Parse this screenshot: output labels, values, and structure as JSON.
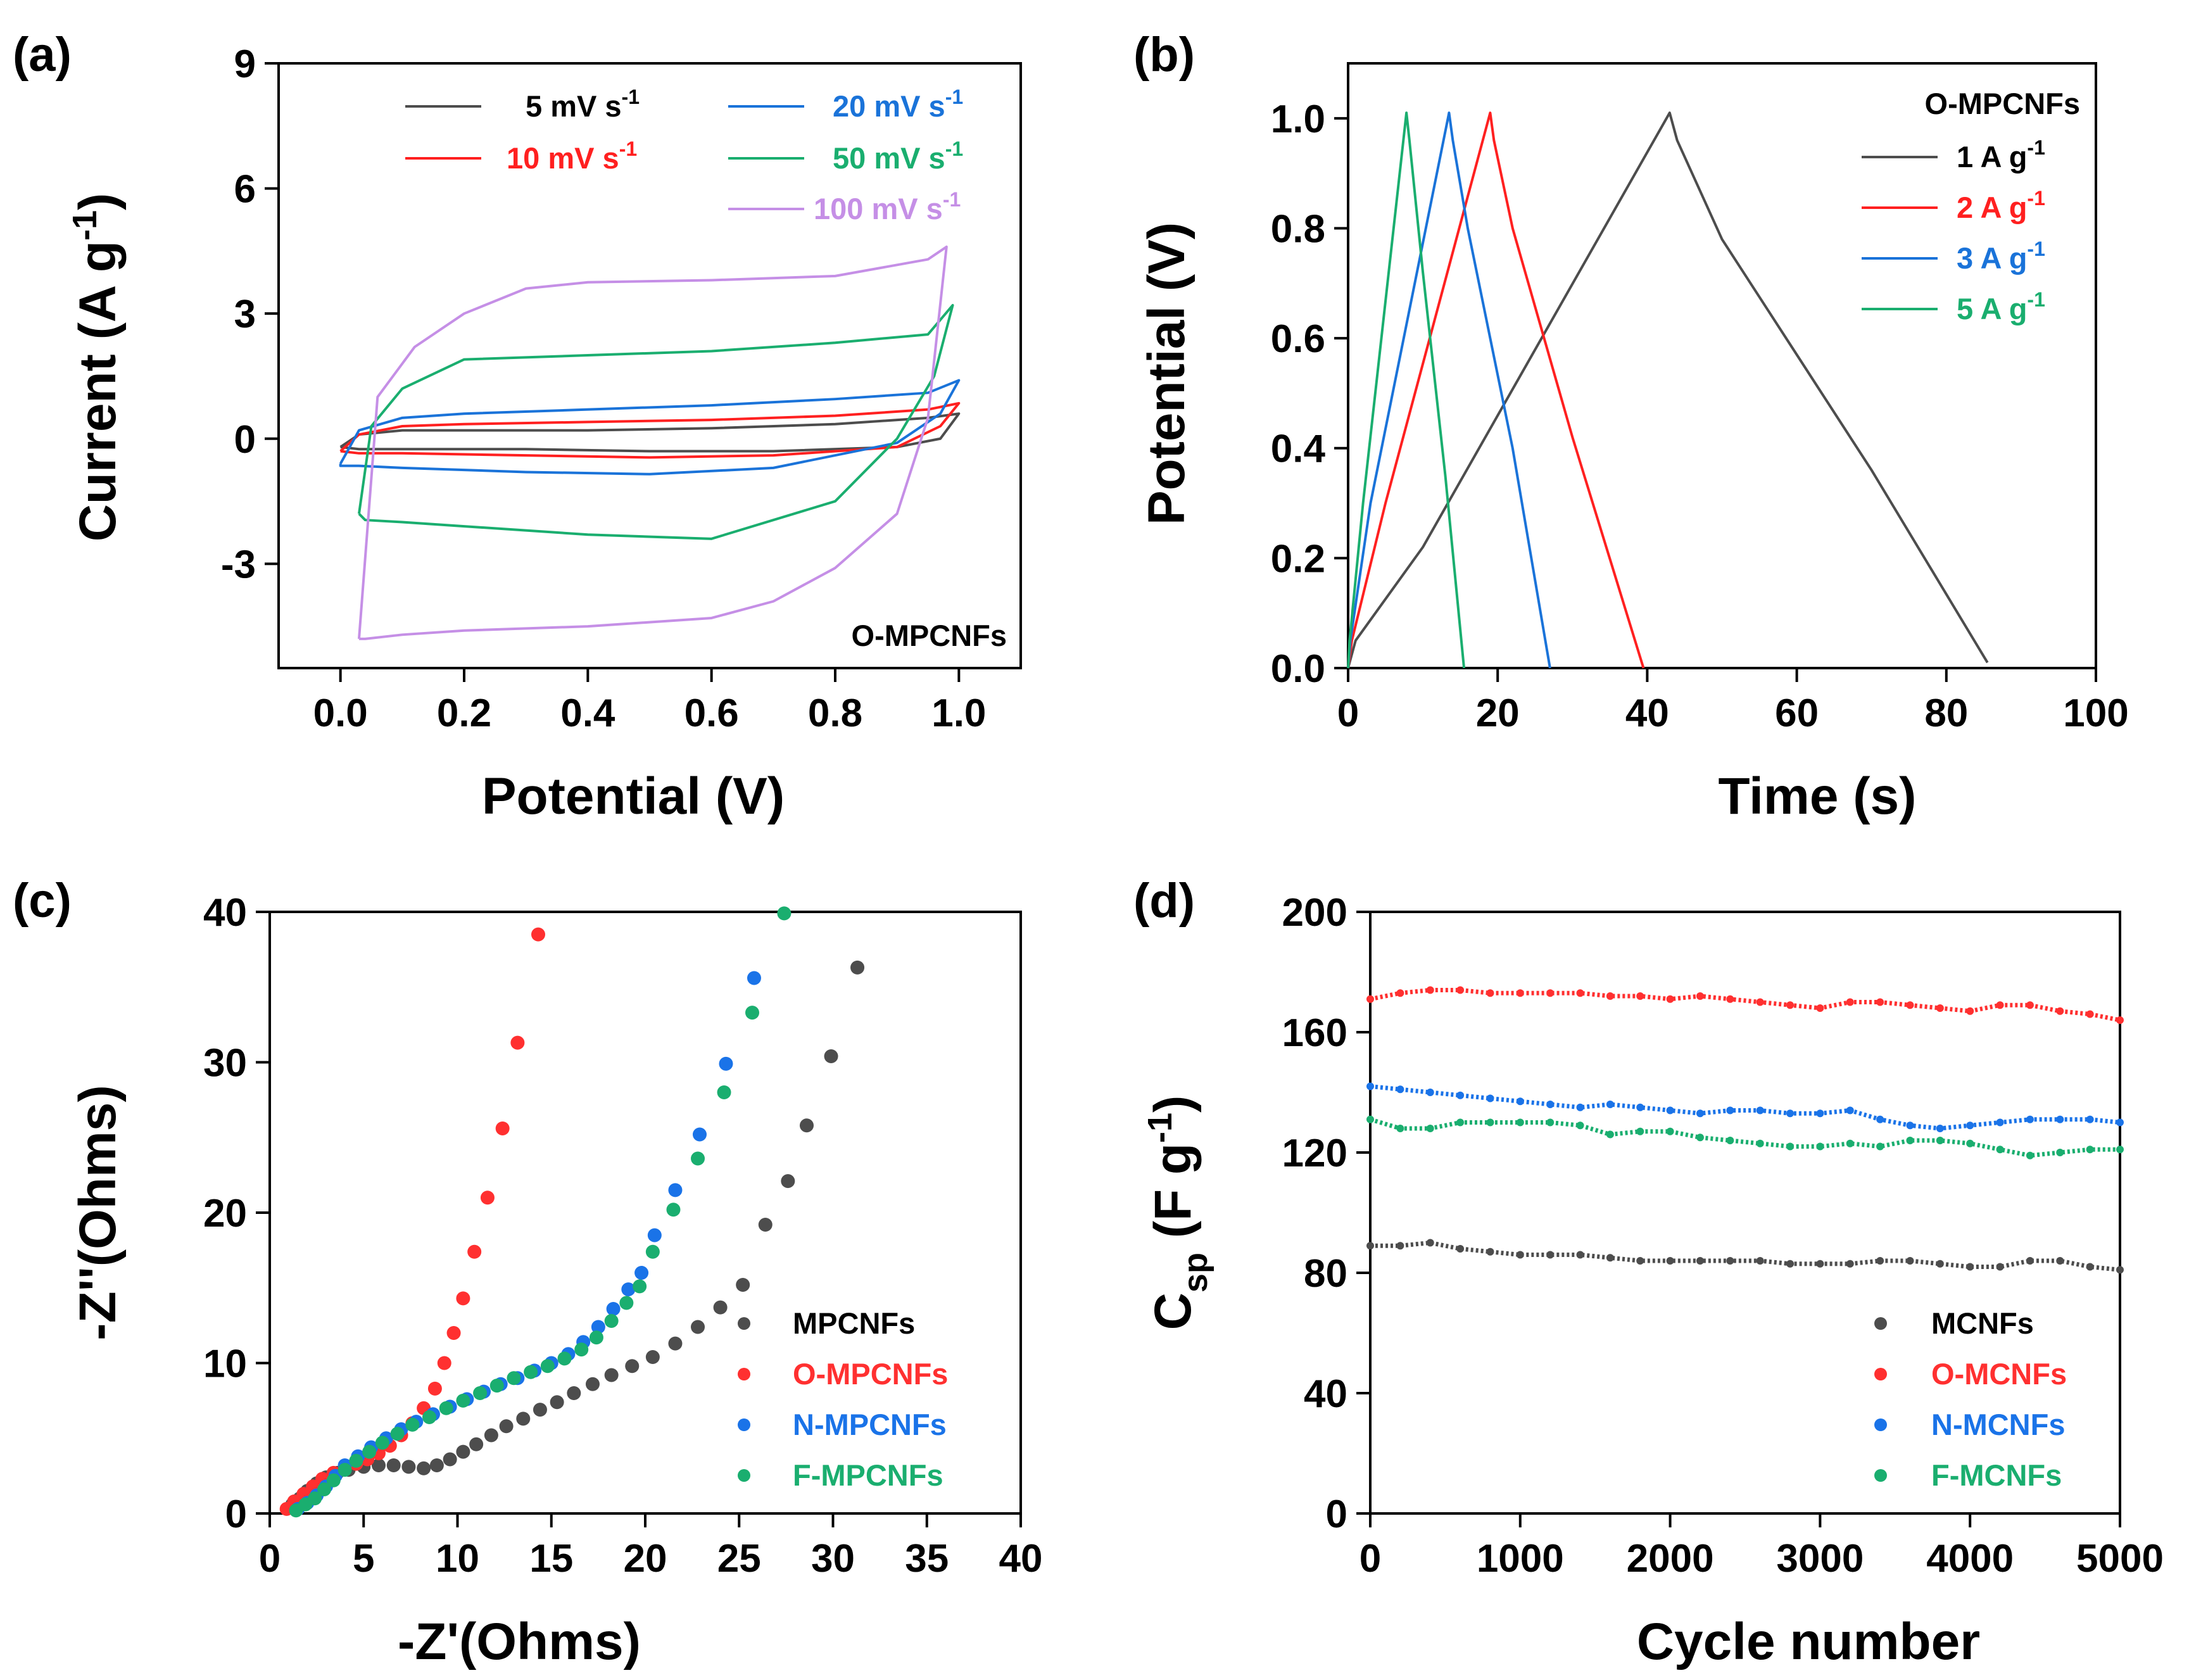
{
  "chart_data": [
    {
      "panel": "(a)",
      "type": "line",
      "xlabel": "Potential (V)",
      "ylabel_main": "Current (A g",
      "ylabel_sup": "-1",
      "ylabel_end": ")",
      "xlim": [
        -0.1,
        1.1
      ],
      "ylim": [
        -5.5,
        9
      ],
      "xticks": [
        "0.0",
        "0.2",
        "0.4",
        "0.6",
        "0.8",
        "1.0"
      ],
      "xtick_values": [
        0,
        0.2,
        0.4,
        0.6,
        0.8,
        1.0
      ],
      "yticks": [
        "-3",
        "0",
        "3",
        "6",
        "9"
      ],
      "ytick_values": [
        -3,
        0,
        3,
        6,
        9
      ],
      "annotation": "O-MPCNFs",
      "series": [
        {
          "name": "5 mV s",
          "sup": "-1",
          "color": "#4d4d4d",
          "x": [
            0.0,
            0.03,
            0.1,
            0.2,
            0.4,
            0.6,
            0.8,
            0.95,
            1.0,
            1.0,
            0.97,
            0.9,
            0.7,
            0.5,
            0.3,
            0.1,
            0.03,
            0.0,
            0.0
          ],
          "y": [
            -0.2,
            0.1,
            0.2,
            0.2,
            0.2,
            0.25,
            0.35,
            0.5,
            0.6,
            0.6,
            0.0,
            -0.2,
            -0.3,
            -0.3,
            -0.25,
            -0.25,
            -0.25,
            -0.2,
            -0.2
          ]
        },
        {
          "name": "10 mV s",
          "sup": "-1",
          "color": "#ff2020",
          "x": [
            0.0,
            0.03,
            0.1,
            0.2,
            0.4,
            0.6,
            0.8,
            0.95,
            1.0,
            1.0,
            0.97,
            0.9,
            0.7,
            0.5,
            0.3,
            0.1,
            0.03,
            0.0,
            0.0
          ],
          "y": [
            -0.3,
            0.1,
            0.3,
            0.35,
            0.4,
            0.45,
            0.55,
            0.7,
            0.85,
            0.85,
            0.3,
            -0.2,
            -0.4,
            -0.45,
            -0.4,
            -0.35,
            -0.35,
            -0.3,
            -0.3
          ]
        },
        {
          "name": "20 mV s",
          "sup": "-1",
          "color": "#1a73d9",
          "x": [
            0.0,
            0.03,
            0.1,
            0.2,
            0.4,
            0.6,
            0.8,
            0.95,
            1.0,
            1.0,
            0.97,
            0.9,
            0.7,
            0.5,
            0.3,
            0.1,
            0.03,
            0.0,
            0.0
          ],
          "y": [
            -0.6,
            0.2,
            0.5,
            0.6,
            0.7,
            0.8,
            0.95,
            1.1,
            1.4,
            1.4,
            0.6,
            -0.1,
            -0.7,
            -0.85,
            -0.8,
            -0.7,
            -0.65,
            -0.65,
            -0.6
          ]
        },
        {
          "name": "50 mV s",
          "sup": "-1",
          "color": "#1aae6f",
          "x": [
            0.03,
            0.05,
            0.1,
            0.2,
            0.4,
            0.6,
            0.8,
            0.95,
            0.99,
            0.99,
            0.96,
            0.9,
            0.8,
            0.6,
            0.4,
            0.2,
            0.1,
            0.04,
            0.03
          ],
          "y": [
            -1.8,
            0.3,
            1.2,
            1.9,
            2.0,
            2.1,
            2.3,
            2.5,
            3.2,
            3.2,
            1.5,
            0.0,
            -1.5,
            -2.4,
            -2.3,
            -2.1,
            -2.0,
            -1.95,
            -1.8
          ]
        },
        {
          "name": "100 mV s",
          "sup": "-1",
          "color": "#c58fe6",
          "x": [
            0.03,
            0.06,
            0.12,
            0.2,
            0.3,
            0.4,
            0.6,
            0.8,
            0.95,
            0.98,
            0.98,
            0.95,
            0.9,
            0.8,
            0.7,
            0.6,
            0.4,
            0.2,
            0.1,
            0.04,
            0.03
          ],
          "y": [
            -4.8,
            1.0,
            2.2,
            3.0,
            3.6,
            3.75,
            3.8,
            3.9,
            4.3,
            4.6,
            4.6,
            0.5,
            -1.8,
            -3.1,
            -3.9,
            -4.3,
            -4.5,
            -4.6,
            -4.7,
            -4.8,
            -4.8
          ]
        }
      ]
    },
    {
      "panel": "(b)",
      "type": "line",
      "xlabel": "Time (s)",
      "ylabel": "Potential (V)",
      "xlim": [
        0,
        100
      ],
      "ylim": [
        0,
        1.1
      ],
      "xticks": [
        "0",
        "20",
        "40",
        "60",
        "80",
        "100"
      ],
      "xtick_values": [
        0,
        20,
        40,
        60,
        80,
        100
      ],
      "yticks": [
        "0.0",
        "0.2",
        "0.4",
        "0.6",
        "0.8",
        "1.0"
      ],
      "ytick_values": [
        0,
        0.2,
        0.4,
        0.6,
        0.8,
        1.0
      ],
      "legend_title": "O-MPCNFs",
      "series": [
        {
          "name": "1 A g",
          "sup": "-1",
          "color": "#4d4d4d",
          "x": [
            0,
            1,
            10,
            43,
            44,
            50,
            60,
            70,
            85.5
          ],
          "y": [
            0,
            0.05,
            0.22,
            1.01,
            0.96,
            0.78,
            0.57,
            0.36,
            0.01
          ]
        },
        {
          "name": "2 A g",
          "sup": "-1",
          "color": "#ff2020",
          "x": [
            0,
            0.5,
            5,
            19,
            19.5,
            22,
            30,
            39.5
          ],
          "y": [
            0,
            0.05,
            0.3,
            1.01,
            0.96,
            0.8,
            0.42,
            0.0
          ]
        },
        {
          "name": "3 A g",
          "sup": "-1",
          "color": "#1a73d9",
          "x": [
            0,
            0.3,
            3,
            13.5,
            14,
            16,
            22,
            27
          ],
          "y": [
            0,
            0.05,
            0.3,
            1.01,
            0.96,
            0.8,
            0.4,
            0.0
          ]
        },
        {
          "name": "5 A g",
          "sup": "-1",
          "color": "#1aae6f",
          "x": [
            0,
            0.2,
            2,
            7.8,
            8.2,
            10,
            13,
            15.5
          ],
          "y": [
            0,
            0.05,
            0.3,
            1.01,
            0.96,
            0.72,
            0.35,
            0.0
          ]
        }
      ]
    },
    {
      "panel": "(c)",
      "type": "scatter",
      "xlabel": "-Z'(Ohms)",
      "ylabel": "-Z''(Ohms)",
      "xlim": [
        0,
        40
      ],
      "ylim": [
        0,
        40
      ],
      "xticks": [
        "0",
        "5",
        "10",
        "15",
        "20",
        "25",
        "30",
        "35",
        "40"
      ],
      "xtick_values": [
        0,
        5,
        10,
        15,
        20,
        25,
        30,
        35,
        40
      ],
      "yticks": [
        "0",
        "10",
        "20",
        "30",
        "40"
      ],
      "ytick_values": [
        0,
        10,
        20,
        30,
        40
      ],
      "series": [
        {
          "name": "MPCNFs",
          "color": "#4d4d4d",
          "x": [
            1.2,
            1.6,
            2.0,
            2.5,
            3.0,
            3.6,
            4.2,
            5.0,
            5.8,
            6.6,
            7.4,
            8.2,
            8.9,
            9.6,
            10.3,
            11.0,
            11.8,
            12.6,
            13.5,
            14.4,
            15.3,
            16.2,
            17.2,
            18.2,
            19.3,
            20.4,
            21.6,
            22.8,
            24.0,
            25.2,
            26.4,
            27.6,
            28.6,
            29.9,
            31.3
          ],
          "y": [
            0.6,
            1.0,
            1.5,
            2.0,
            2.4,
            2.7,
            2.9,
            3.1,
            3.2,
            3.2,
            3.1,
            3.0,
            3.2,
            3.6,
            4.1,
            4.6,
            5.2,
            5.8,
            6.3,
            6.9,
            7.4,
            8.0,
            8.6,
            9.2,
            9.8,
            10.4,
            11.3,
            12.4,
            13.7,
            15.2,
            19.2,
            22.1,
            25.8,
            30.4,
            36.3
          ]
        },
        {
          "name": "O-MPCNFs",
          "color": "#ff3030",
          "x": [
            0.9,
            1.3,
            1.8,
            2.3,
            2.8,
            3.4,
            4.0,
            4.6,
            5.2,
            5.8,
            6.4,
            7.0,
            7.6,
            8.2,
            8.8,
            9.3,
            9.8,
            10.3,
            10.9,
            11.6,
            12.4,
            13.2,
            14.3
          ],
          "y": [
            0.3,
            0.8,
            1.3,
            1.8,
            2.3,
            2.7,
            3.0,
            3.3,
            3.6,
            4.0,
            4.5,
            5.2,
            6.0,
            7.0,
            8.3,
            10.0,
            12.0,
            14.3,
            17.4,
            21.0,
            25.6,
            31.3,
            38.5
          ]
        },
        {
          "name": "N-MPCNFs",
          "color": "#1a73e8",
          "x": [
            1.5,
            2.0,
            2.5,
            3.0,
            3.5,
            4.0,
            4.7,
            5.4,
            6.2,
            7.0,
            7.8,
            8.7,
            9.6,
            10.5,
            11.4,
            12.3,
            13.2,
            14.1,
            15.0,
            15.9,
            16.7,
            17.5,
            18.3,
            19.1,
            19.8,
            20.5,
            21.6,
            22.9,
            24.3,
            25.8
          ],
          "y": [
            0.3,
            0.7,
            1.2,
            1.8,
            2.5,
            3.2,
            3.8,
            4.4,
            5.0,
            5.6,
            6.1,
            6.6,
            7.1,
            7.6,
            8.1,
            8.6,
            9.0,
            9.5,
            10.0,
            10.6,
            11.4,
            12.4,
            13.6,
            14.9,
            16.0,
            18.5,
            21.5,
            25.2,
            29.9,
            35.6
          ]
        },
        {
          "name": "F-MPCNFs",
          "color": "#1aae6f",
          "x": [
            1.4,
            1.9,
            2.4,
            2.9,
            3.4,
            4.0,
            4.6,
            5.3,
            6.0,
            6.8,
            7.6,
            8.5,
            9.4,
            10.3,
            11.2,
            12.1,
            13.0,
            13.9,
            14.8,
            15.7,
            16.6,
            17.4,
            18.2,
            19.0,
            19.7,
            20.4,
            21.5,
            22.8,
            24.2,
            25.7,
            27.4
          ],
          "y": [
            0.2,
            0.6,
            1.0,
            1.6,
            2.2,
            2.9,
            3.5,
            4.1,
            4.7,
            5.3,
            5.9,
            6.4,
            7.0,
            7.5,
            8.0,
            8.5,
            9.0,
            9.4,
            9.8,
            10.3,
            10.9,
            11.7,
            12.8,
            14.0,
            15.1,
            17.4,
            20.2,
            23.6,
            28.0,
            33.3,
            39.9
          ]
        }
      ]
    },
    {
      "panel": "(d)",
      "type": "scatter",
      "xlabel": "Cycle number",
      "ylabel_c": "C",
      "ylabel_sub": "sp",
      "ylabel_mid": " (F g",
      "ylabel_sup": "-1",
      "ylabel_end": ")",
      "xlim": [
        0,
        5000
      ],
      "ylim": [
        0,
        200
      ],
      "xticks": [
        "0",
        "1000",
        "2000",
        "3000",
        "4000",
        "5000"
      ],
      "xtick_values": [
        0,
        1000,
        2000,
        3000,
        4000,
        5000
      ],
      "yticks": [
        "0",
        "40",
        "80",
        "120",
        "160",
        "200"
      ],
      "ytick_values": [
        0,
        40,
        80,
        120,
        160,
        200
      ],
      "series": [
        {
          "name": "MCNFs",
          "color": "#4d4d4d",
          "x": [
            0,
            200,
            400,
            600,
            800,
            1000,
            1200,
            1400,
            1600,
            1800,
            2000,
            2200,
            2400,
            2600,
            2800,
            3000,
            3200,
            3400,
            3600,
            3800,
            4000,
            4200,
            4400,
            4600,
            4800,
            5000
          ],
          "y": [
            89,
            89,
            90,
            88,
            87,
            86,
            86,
            86,
            85,
            84,
            84,
            84,
            84,
            84,
            83,
            83,
            83,
            84,
            84,
            83,
            82,
            82,
            84,
            84,
            82,
            81
          ]
        },
        {
          "name": "O-MCNFs",
          "color": "#ff3030",
          "x": [
            0,
            200,
            400,
            600,
            800,
            1000,
            1200,
            1400,
            1600,
            1800,
            2000,
            2200,
            2400,
            2600,
            2800,
            3000,
            3200,
            3400,
            3600,
            3800,
            4000,
            4200,
            4400,
            4600,
            4800,
            5000
          ],
          "y": [
            171,
            173,
            174,
            174,
            173,
            173,
            173,
            173,
            172,
            172,
            171,
            172,
            171,
            170,
            169,
            168,
            170,
            170,
            169,
            168,
            167,
            169,
            169,
            167,
            166,
            164
          ]
        },
        {
          "name": "N-MCNFs",
          "color": "#1a73e8",
          "x": [
            0,
            200,
            400,
            600,
            800,
            1000,
            1200,
            1400,
            1600,
            1800,
            2000,
            2200,
            2400,
            2600,
            2800,
            3000,
            3200,
            3400,
            3600,
            3800,
            4000,
            4200,
            4400,
            4600,
            4800,
            5000
          ],
          "y": [
            142,
            141,
            140,
            139,
            138,
            137,
            136,
            135,
            136,
            135,
            134,
            133,
            134,
            134,
            133,
            133,
            134,
            131,
            129,
            128,
            129,
            130,
            131,
            131,
            131,
            130
          ]
        },
        {
          "name": "F-MCNFs",
          "color": "#1aae6f",
          "x": [
            0,
            200,
            400,
            600,
            800,
            1000,
            1200,
            1400,
            1600,
            1800,
            2000,
            2200,
            2400,
            2600,
            2800,
            3000,
            3200,
            3400,
            3600,
            3800,
            4000,
            4200,
            4400,
            4600,
            4800,
            5000
          ],
          "y": [
            131,
            128,
            128,
            130,
            130,
            130,
            130,
            129,
            126,
            127,
            127,
            125,
            124,
            123,
            122,
            122,
            123,
            122,
            124,
            124,
            123,
            121,
            119,
            120,
            121,
            121
          ]
        }
      ]
    }
  ]
}
